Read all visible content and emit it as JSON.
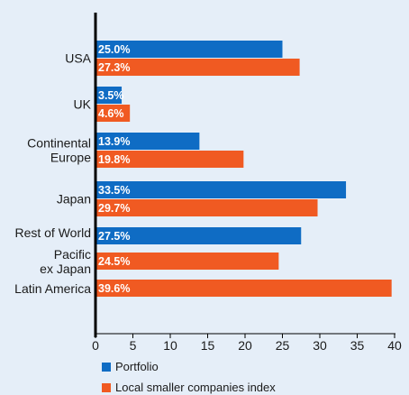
{
  "chart_data": {
    "type": "bar",
    "orientation": "horizontal",
    "categories": [
      [
        "USA"
      ],
      [
        "UK"
      ],
      [
        "Continental",
        "Europe"
      ],
      [
        "Japan"
      ],
      [
        "Rest of World"
      ],
      [
        "Pacific",
        "ex Japan"
      ],
      [
        "Latin America"
      ]
    ],
    "series": [
      {
        "name": "Portfolio",
        "color": "#0f6cc4",
        "values": [
          25.0,
          3.5,
          13.9,
          33.5,
          27.5,
          null,
          null
        ],
        "labels": [
          "25.0%",
          "3.5%",
          "13.9%",
          "33.5%",
          "27.5%",
          null,
          null
        ]
      },
      {
        "name": "Local smaller companies index",
        "color": "#f05a22",
        "values": [
          27.3,
          4.6,
          19.8,
          29.7,
          null,
          24.5,
          39.6
        ],
        "labels": [
          "27.3%",
          "4.6%",
          "19.8%",
          "29.7%",
          null,
          "24.5%",
          "39.6%"
        ]
      }
    ],
    "xlim": [
      0,
      40
    ],
    "xticks": [
      "0",
      "5",
      "10",
      "15",
      "20",
      "25",
      "30",
      "35",
      "40"
    ],
    "grid": false,
    "legend_position": "bottom-left",
    "background": "#e5eef8"
  }
}
